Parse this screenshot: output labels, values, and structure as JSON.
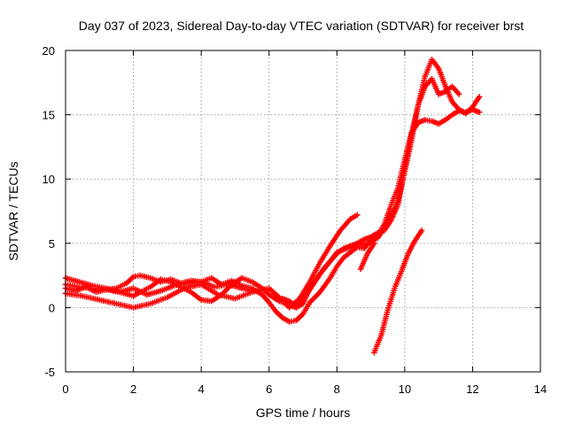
{
  "chart_data": {
    "type": "scatter",
    "title": "Day 037 of 2023, Sidereal Day-to-day VTEC variation (SDTVAR) for receiver brst",
    "xlabel": "GPS time / hours",
    "ylabel": "SDTVAR / TECUs",
    "xlim": [
      0,
      14
    ],
    "ylim": [
      -5,
      20
    ],
    "xticks": [
      0,
      2,
      4,
      6,
      8,
      10,
      12,
      14
    ],
    "yticks": [
      -5,
      0,
      5,
      10,
      15,
      20
    ],
    "xtick_labels": [
      "0",
      "2",
      "4",
      "6",
      "8",
      "10",
      "12",
      "14"
    ],
    "ytick_labels": [
      "-5",
      "0",
      "5",
      "10",
      "15",
      "20"
    ],
    "grid": true,
    "marker": "plus",
    "color": "#ff0000",
    "series": [
      {
        "x": [
          0.0,
          0.3,
          0.6,
          0.9,
          1.2,
          1.5,
          1.8,
          2.0,
          2.2,
          2.5,
          2.8,
          3.1,
          3.4,
          3.7,
          4.0,
          4.3,
          4.6,
          4.9,
          5.2,
          5.5,
          5.8,
          6.0,
          6.2,
          6.4,
          6.6,
          6.8,
          7.0,
          7.2,
          7.5,
          7.8,
          8.0,
          8.2,
          8.4,
          8.6,
          8.8,
          9.0,
          9.2,
          9.4,
          9.6,
          9.8,
          10.0,
          10.2,
          10.4,
          10.6,
          10.8,
          11.0,
          11.2,
          11.4,
          11.6,
          11.8,
          12.0,
          12.2
        ],
        "y": [
          1.5,
          1.3,
          1.6,
          1.2,
          1.4,
          1.5,
          1.9,
          2.4,
          2.5,
          2.3,
          2.0,
          2.2,
          1.9,
          2.1,
          2.0,
          2.3,
          1.8,
          2.1,
          1.7,
          1.5,
          1.0,
          0.4,
          -0.3,
          -0.8,
          -1.1,
          -1.0,
          -0.5,
          0.4,
          1.2,
          2.3,
          3.2,
          3.9,
          4.3,
          4.7,
          4.6,
          5.2,
          5.6,
          6.5,
          8.0,
          9.3,
          11.5,
          13.6,
          14.4,
          14.6,
          14.5,
          14.3,
          14.6,
          15.0,
          15.3,
          15.2,
          15.4,
          15.2
        ]
      },
      {
        "x": [
          0.0,
          0.4,
          0.8,
          1.2,
          1.6,
          2.0,
          2.2,
          2.5,
          2.8,
          3.1,
          3.4,
          3.7,
          4.0,
          4.3,
          4.6,
          4.9,
          5.2,
          5.5,
          5.8,
          6.0,
          6.3,
          6.6,
          6.8,
          7.0,
          7.2,
          7.5,
          7.8,
          8.0,
          8.3,
          8.6,
          8.9,
          9.2,
          9.5,
          9.8,
          10.0,
          10.2,
          10.4,
          10.6,
          10.8,
          11.0,
          11.2,
          11.4,
          11.6,
          11.8,
          12.0,
          12.2
        ],
        "y": [
          2.3,
          2.0,
          1.7,
          1.5,
          1.2,
          0.9,
          1.2,
          1.6,
          2.2,
          2.0,
          1.6,
          1.2,
          0.6,
          0.5,
          1.0,
          1.8,
          2.3,
          2.0,
          1.5,
          1.0,
          0.5,
          0.2,
          0.0,
          0.3,
          1.5,
          2.6,
          3.6,
          4.3,
          4.6,
          4.8,
          5.0,
          5.4,
          6.6,
          8.3,
          10.6,
          13.0,
          15.8,
          18.0,
          19.3,
          18.6,
          17.2,
          16.0,
          15.4,
          15.1,
          15.6,
          16.4
        ]
      },
      {
        "x": [
          0.0,
          0.5,
          1.0,
          1.5,
          2.0,
          2.5,
          3.0,
          3.5,
          4.0,
          4.5,
          5.0,
          5.5,
          6.0,
          6.3,
          6.6,
          6.9,
          7.2,
          7.5,
          7.8,
          8.1,
          8.4,
          8.6
        ],
        "y": [
          1.1,
          0.9,
          0.6,
          0.3,
          0.0,
          0.3,
          0.8,
          1.5,
          1.8,
          1.0,
          0.7,
          1.2,
          1.5,
          0.8,
          0.0,
          0.7,
          2.0,
          3.5,
          4.8,
          6.0,
          6.9,
          7.2
        ]
      },
      {
        "x": [
          6.4,
          6.6,
          6.8,
          7.0,
          7.2,
          7.4,
          7.6,
          7.8,
          8.0,
          8.2,
          8.4,
          8.6,
          8.8,
          9.0,
          9.2,
          9.4,
          9.6,
          9.8,
          10.0,
          10.2,
          10.4,
          10.6,
          10.8,
          11.0,
          11.2,
          11.4,
          11.6
        ],
        "y": [
          0.7,
          0.5,
          0.1,
          0.6,
          1.4,
          2.2,
          3.0,
          3.6,
          4.2,
          4.6,
          4.8,
          5.0,
          5.3,
          5.5,
          5.8,
          6.0,
          6.8,
          8.0,
          10.8,
          13.5,
          15.8,
          17.2,
          17.8,
          16.6,
          16.8,
          17.2,
          16.6
        ]
      },
      {
        "x": [
          0.0,
          0.4,
          0.8,
          1.2,
          1.6,
          2.0,
          2.4,
          2.8,
          3.2,
          3.6,
          4.0,
          4.4,
          4.8,
          5.2,
          5.5
        ],
        "y": [
          1.8,
          1.6,
          1.5,
          1.4,
          1.2,
          1.5,
          1.0,
          1.3,
          1.7,
          1.9,
          2.0,
          1.6,
          1.8,
          1.5,
          1.3
        ]
      },
      {
        "x": [
          8.7,
          8.9,
          9.1
        ],
        "y": [
          3.0,
          4.2,
          5.0
        ]
      },
      {
        "x": [
          9.1,
          9.3,
          9.5,
          9.7,
          9.9,
          10.1,
          10.3,
          10.5
        ],
        "y": [
          -3.5,
          -2.2,
          -0.2,
          1.5,
          2.8,
          4.2,
          5.2,
          6.0
        ]
      }
    ]
  }
}
